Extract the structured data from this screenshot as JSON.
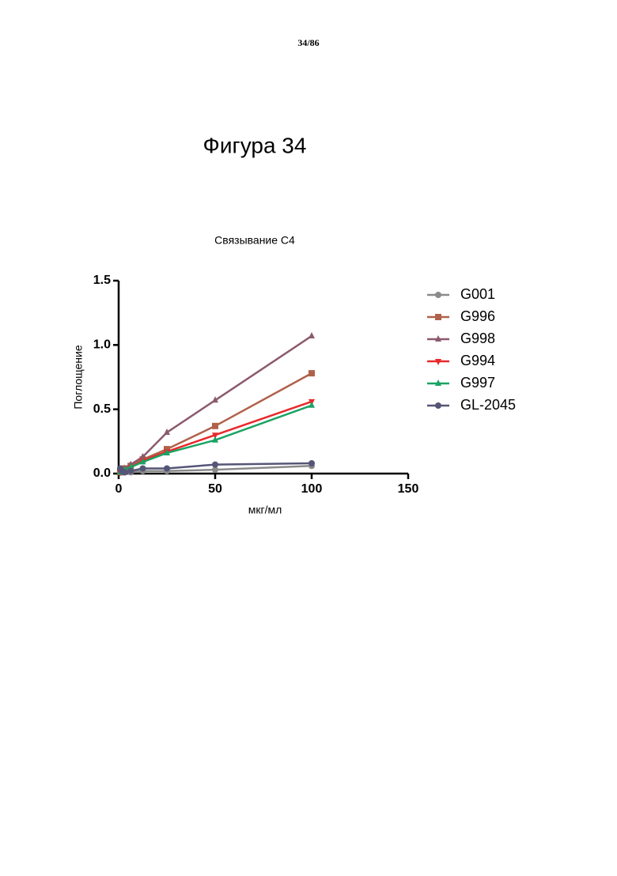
{
  "page_number": "34/86",
  "figure_title": "Фигура 34",
  "chart_data": {
    "type": "line",
    "title": "Связывание C4",
    "x_label": "мкг/мл",
    "y_label": "Поглощение",
    "x": [
      0.78,
      1.56,
      3.13,
      6.25,
      12.5,
      25,
      50,
      100
    ],
    "series": [
      {
        "name": "G001",
        "color": "#8a8a8a",
        "marker": "circle",
        "values": [
          0.01,
          0.01,
          0.01,
          0.01,
          0.02,
          0.02,
          0.03,
          0.06
        ]
      },
      {
        "name": "G996",
        "color": "#b0614a",
        "marker": "square",
        "values": [
          0.01,
          0.02,
          0.04,
          0.06,
          0.11,
          0.19,
          0.37,
          0.78
        ]
      },
      {
        "name": "G998",
        "color": "#8b5a6e",
        "marker": "triangle-up",
        "values": [
          0.01,
          0.02,
          0.04,
          0.07,
          0.13,
          0.32,
          0.57,
          1.07
        ]
      },
      {
        "name": "G994",
        "color": "#e8292b",
        "marker": "triangle-down",
        "values": [
          0.01,
          0.02,
          0.03,
          0.05,
          0.1,
          0.17,
          0.3,
          0.56
        ]
      },
      {
        "name": "G997",
        "color": "#1aa364",
        "marker": "triangle-up",
        "values": [
          0.01,
          0.02,
          0.03,
          0.05,
          0.09,
          0.16,
          0.26,
          0.53
        ]
      },
      {
        "name": "GL-2045",
        "color": "#555577",
        "marker": "circle",
        "values": [
          0.04,
          0.02,
          0.01,
          0.02,
          0.04,
          0.04,
          0.07,
          0.08
        ]
      }
    ],
    "xlim": [
      0,
      150
    ],
    "xticks": [
      0,
      50,
      100,
      150
    ],
    "ylim": [
      0,
      1.5
    ],
    "yticks": [
      {
        "value": 0,
        "label": "0.0"
      },
      0.5,
      {
        "value": 1,
        "label": "1.0"
      },
      1.5
    ],
    "legend": "right"
  }
}
